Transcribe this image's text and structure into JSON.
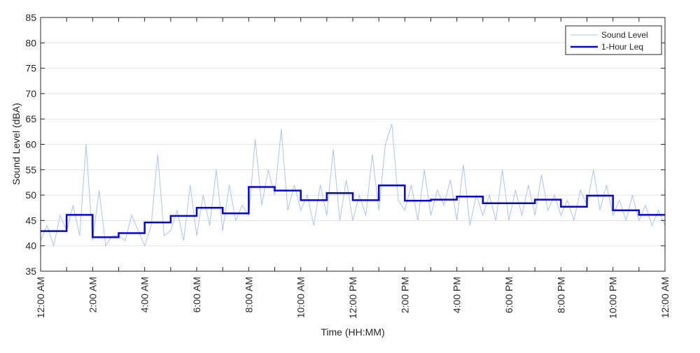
{
  "chart_data": {
    "type": "line",
    "xlabel": "Time (HH:MM)",
    "ylabel": "Sound Level (dBA)",
    "ylim": [
      35,
      85
    ],
    "yticks": [
      35,
      40,
      45,
      50,
      55,
      60,
      65,
      70,
      75,
      80,
      85
    ],
    "xlim_hours": [
      0,
      24
    ],
    "xtick_labels": [
      "12:00 AM",
      "2:00 AM",
      "4:00 AM",
      "6:00 AM",
      "8:00 AM",
      "10:00 AM",
      "12:00 PM",
      "2:00 PM",
      "4:00 PM",
      "6:00 PM",
      "8:00 PM",
      "10:00 PM",
      "12:00 AM"
    ],
    "grid": "horizontal",
    "legend": {
      "placement": "top-right",
      "entries": [
        "Sound Level",
        "1-Hour Leq"
      ]
    },
    "series": [
      {
        "name": "Sound Level",
        "color": "#a9c4f5",
        "sample_interval_hours": 0.25,
        "values": [
          41,
          44,
          40,
          46,
          43,
          48,
          42,
          60,
          41,
          51,
          40,
          42,
          42,
          41,
          46,
          43,
          40,
          44,
          58,
          42,
          43,
          47,
          41,
          52,
          42,
          50,
          44,
          55,
          43,
          52,
          45,
          48,
          46,
          61,
          48,
          55,
          50,
          63,
          47,
          52,
          47,
          50,
          44,
          52,
          46,
          59,
          45,
          53,
          45,
          50,
          46,
          58,
          47,
          60,
          64,
          49,
          47,
          52,
          45,
          55,
          46,
          51,
          48,
          53,
          45,
          56,
          44,
          50,
          46,
          50,
          45,
          55,
          45,
          51,
          46,
          52,
          46,
          54,
          47,
          50,
          46,
          49,
          45,
          51,
          48,
          55,
          47,
          52,
          46,
          49,
          45,
          50,
          45,
          48,
          44,
          47,
          44
        ]
      },
      {
        "name": "1-Hour Leq",
        "color": "#0000ff",
        "hours": [
          0,
          1,
          2,
          3,
          4,
          5,
          6,
          7,
          8,
          9,
          10,
          11,
          12,
          13,
          14,
          15,
          16,
          17,
          18,
          19,
          20,
          21,
          22,
          23
        ],
        "values": [
          42.9,
          46.1,
          41.7,
          42.5,
          44.6,
          45.9,
          47.5,
          46.4,
          51.6,
          50.9,
          49.0,
          50.4,
          49.0,
          51.9,
          48.9,
          49.1,
          49.7,
          48.4,
          48.4,
          49.1,
          47.7,
          49.9,
          47.0,
          46.1
        ]
      }
    ]
  }
}
